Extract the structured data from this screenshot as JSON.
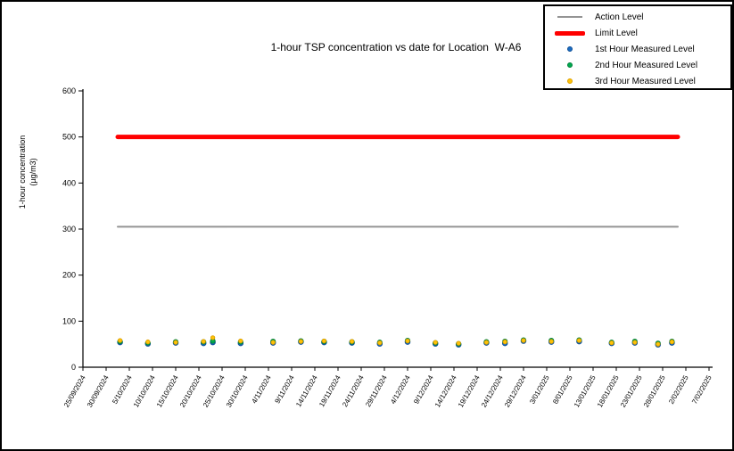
{
  "window": {
    "background_color": "#ffffff",
    "border_color": "#000000"
  },
  "chart": {
    "title": "1-hour TSP concentration vs date for Location  W-A6"
  },
  "chart_data": {
    "type": "scatter",
    "title": "1-hour TSP concentration vs date for Location  W-A6",
    "xlabel": "",
    "ylabel_line1": "1-hour concentration",
    "ylabel_line2": "(µg/m3)",
    "ylim": [
      0,
      600
    ],
    "yticks": [
      0,
      100,
      200,
      300,
      400,
      500,
      600
    ],
    "x_tick_interval_days": 5,
    "x_tick_labels": [
      "25/09/2024",
      "30/09/2024",
      "5/10/2024",
      "10/10/2024",
      "15/10/2024",
      "20/10/2024",
      "25/10/2024",
      "30/10/2024",
      "4/11/2024",
      "9/11/2024",
      "14/11/2024",
      "19/11/2024",
      "24/11/2024",
      "29/11/2024",
      "4/12/2024",
      "9/12/2024",
      "14/12/2024",
      "19/12/2024",
      "24/12/2024",
      "29/12/2024",
      "3/01/2025",
      "8/01/2025",
      "13/01/2025",
      "18/01/2025",
      "23/01/2025",
      "28/01/2025",
      "2/02/2025",
      "7/02/2025"
    ],
    "grid": false,
    "legend_position": "top-right",
    "reference_lines": [
      {
        "name": "Action Level",
        "value": 305,
        "color": "#949494",
        "thickness": 2
      },
      {
        "name": "Limit Level",
        "value": 500,
        "color": "#ff0000",
        "thickness": 5
      }
    ],
    "series": [
      {
        "name": "1st Hour Measured Level",
        "key": "h1",
        "color": "#1b6cc2",
        "edge": "#0f4f96",
        "radius": 2.8
      },
      {
        "name": "2nd Hour Measured Level",
        "key": "h2",
        "color": "#00a94f",
        "edge": "#00803a",
        "radius": 2.6
      },
      {
        "name": "3rd Hour Measured Level",
        "key": "h3",
        "color": "#ffc408",
        "edge": "#dd9f00",
        "radius": 2.2
      }
    ],
    "legend": [
      {
        "label": "Action Level",
        "swatch": "line-thin",
        "color": "#949494",
        "edge": "#949494"
      },
      {
        "label": "Limit Level",
        "swatch": "line-thick",
        "color": "#ff0000",
        "edge": "#ff0000"
      },
      {
        "label": "1st Hour Measured Level",
        "swatch": "dot",
        "color": "#1b6cc2",
        "edge": "#0f4f96"
      },
      {
        "label": "2nd Hour Measured Level",
        "swatch": "dot",
        "color": "#00a94f",
        "edge": "#00803a"
      },
      {
        "label": "3rd Hour Measured Level",
        "swatch": "dot",
        "color": "#ffc408",
        "edge": "#dd9f00"
      }
    ],
    "points": [
      {
        "date_est": "3/10/2024",
        "day": 8,
        "h1": 54,
        "h2": 56,
        "h3": 58
      },
      {
        "date_est": "9/10/2024",
        "day": 14,
        "h1": 51,
        "h2": 53,
        "h3": 55
      },
      {
        "date_est": "15/10/2024",
        "day": 20,
        "h1": 53,
        "h2": 55,
        "h3": 54
      },
      {
        "date_est": "21/10/2024",
        "day": 26,
        "h1": 52,
        "h2": 55,
        "h3": 56
      },
      {
        "date_est": "23/10/2024",
        "day": 28,
        "h1": 54,
        "h2": 57,
        "h3": 64
      },
      {
        "date_est": "29/10/2024",
        "day": 34,
        "h1": 52,
        "h2": 55,
        "h3": 57
      },
      {
        "date_est": "5/11/2024",
        "day": 41,
        "h1": 53,
        "h2": 56,
        "h3": 54
      },
      {
        "date_est": "11/11/2024",
        "day": 47,
        "h1": 55,
        "h2": 57,
        "h3": 56
      },
      {
        "date_est": "16/11/2024",
        "day": 52,
        "h1": 54,
        "h2": 56,
        "h3": 57
      },
      {
        "date_est": "22/11/2024",
        "day": 58,
        "h1": 53,
        "h2": 55,
        "h3": 56
      },
      {
        "date_est": "28/11/2024",
        "day": 64,
        "h1": 51,
        "h2": 54,
        "h3": 53
      },
      {
        "date_est": "4/12/2024",
        "day": 70,
        "h1": 55,
        "h2": 58,
        "h3": 57
      },
      {
        "date_est": "10/12/2024",
        "day": 76,
        "h1": 51,
        "h2": 53,
        "h3": 54
      },
      {
        "date_est": "15/12/2024",
        "day": 81,
        "h1": 49,
        "h2": 51,
        "h3": 52
      },
      {
        "date_est": "21/12/2024",
        "day": 87,
        "h1": 53,
        "h2": 55,
        "h3": 54
      },
      {
        "date_est": "25/12/2024",
        "day": 91,
        "h1": 52,
        "h2": 56,
        "h3": 55
      },
      {
        "date_est": "29/12/2024",
        "day": 95,
        "h1": 57,
        "h2": 59,
        "h3": 58
      },
      {
        "date_est": "4/01/2025",
        "day": 101,
        "h1": 55,
        "h2": 58,
        "h3": 56
      },
      {
        "date_est": "10/01/2025",
        "day": 107,
        "h1": 56,
        "h2": 59,
        "h3": 58
      },
      {
        "date_est": "17/01/2025",
        "day": 114,
        "h1": 52,
        "h2": 54,
        "h3": 53
      },
      {
        "date_est": "22/01/2025",
        "day": 119,
        "h1": 53,
        "h2": 56,
        "h3": 54
      },
      {
        "date_est": "27/01/2025",
        "day": 124,
        "h1": 49,
        "h2": 52,
        "h3": 50
      },
      {
        "date_est": "30/01/2025",
        "day": 127,
        "h1": 53,
        "h2": 56,
        "h3": 55
      }
    ]
  }
}
